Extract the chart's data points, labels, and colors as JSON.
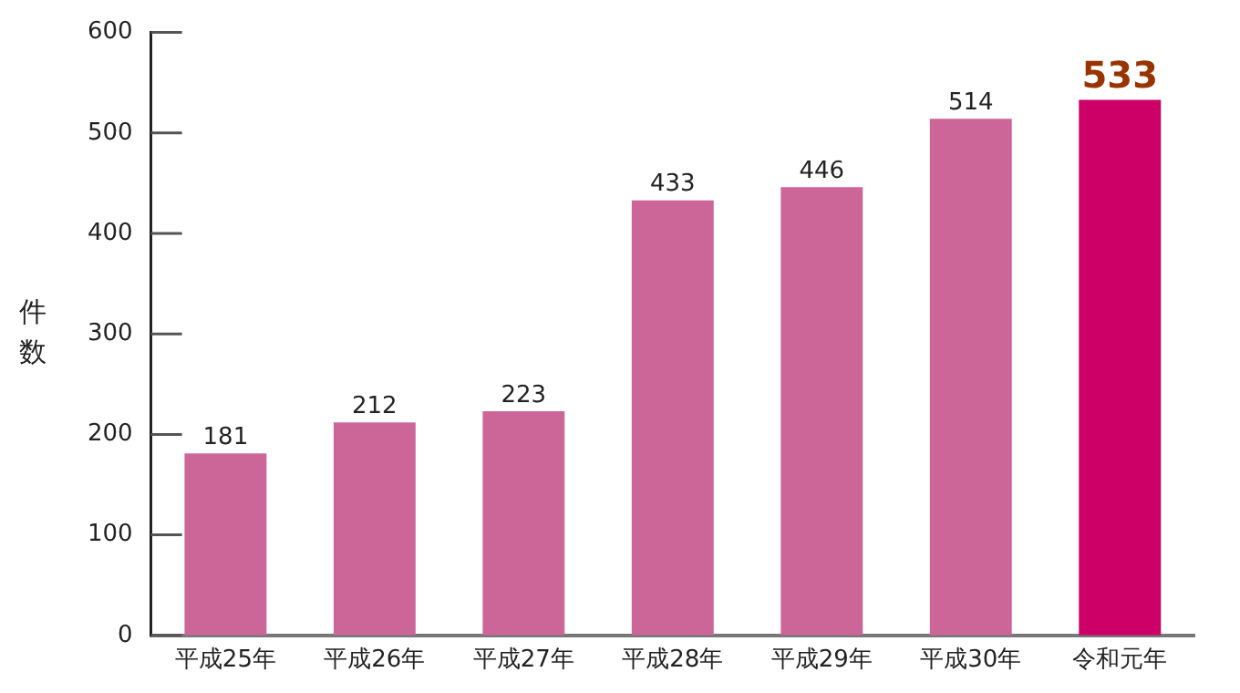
{
  "chart_data": {
    "type": "bar",
    "ylabel": "件数",
    "categories": [
      "平成25年",
      "平成26年",
      "平成27年",
      "平成28年",
      "平成29年",
      "平成30年",
      "令和元年"
    ],
    "values": [
      181,
      212,
      223,
      433,
      446,
      514,
      533
    ],
    "colors": [
      "#cc6699",
      "#cc6699",
      "#cc6699",
      "#cc6699",
      "#cc6699",
      "#cc6699",
      "#cc0066"
    ],
    "ylim": [
      0,
      600
    ],
    "yticks": [
      0,
      100,
      200,
      300,
      400,
      500,
      600
    ],
    "grid": false,
    "data_labels": true
  }
}
